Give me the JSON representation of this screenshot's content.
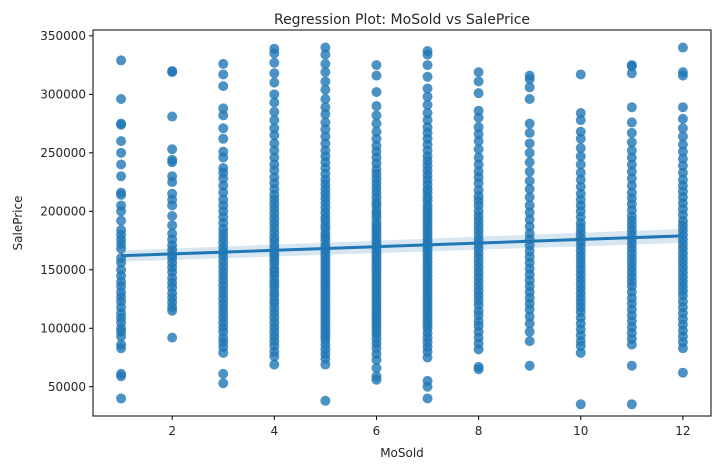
{
  "chart_data": {
    "type": "scatter",
    "title": "Regression Plot: MoSold vs SalePrice",
    "xlabel": "MoSold",
    "ylabel": "SalePrice",
    "xlim": [
      0.45,
      12.55
    ],
    "ylim": [
      25000,
      355000
    ],
    "xticks": [
      2,
      4,
      6,
      8,
      10,
      12
    ],
    "yticks": [
      50000,
      100000,
      150000,
      200000,
      250000,
      300000,
      350000
    ],
    "grid": false,
    "colors": {
      "points": "#1f77b4",
      "line": "#1f77b4",
      "band": "#1f77b4"
    },
    "regression": {
      "x": [
        1,
        12
      ],
      "y": [
        162000,
        179000
      ],
      "ci_lower": [
        157000,
        173000
      ],
      "ci_upper": [
        166500,
        185000
      ]
    },
    "series": [
      {
        "x": 1,
        "values": [
          329000,
          296000,
          275000,
          274000,
          260000,
          250000,
          240000,
          230000,
          216000,
          214000,
          205000,
          200000,
          192000,
          184000,
          180000,
          176000,
          172000,
          168000,
          160000,
          156000,
          150000,
          145000,
          140000,
          136000,
          131000,
          127000,
          123000,
          118000,
          113000,
          109000,
          105000,
          100000,
          97000,
          93000,
          86000,
          83000,
          61000,
          59000,
          40000
        ]
      },
      {
        "x": 2,
        "values": [
          320000,
          319000,
          281000,
          253000,
          244000,
          242000,
          230000,
          225000,
          215000,
          210000,
          205000,
          196000,
          188000,
          181000,
          176000,
          171000,
          167000,
          163000,
          160000,
          156000,
          152000,
          148000,
          143000,
          139000,
          135000,
          130000,
          126000,
          122000,
          118000,
          115000,
          92000
        ]
      },
      {
        "x": 3,
        "values": [
          326000,
          317000,
          307000,
          288000,
          282000,
          271000,
          262000,
          251000,
          246000,
          237000,
          233000,
          228000,
          222000,
          216000,
          210000,
          205000,
          200000,
          195000,
          190000,
          185000,
          181000,
          177000,
          173000,
          169000,
          165000,
          161000,
          157000,
          153000,
          149000,
          145000,
          141000,
          137000,
          133000,
          129000,
          125000,
          121000,
          117000,
          113000,
          109000,
          105000,
          101000,
          97000,
          92000,
          88000,
          84000,
          79000,
          61000,
          53000
        ]
      },
      {
        "x": 4,
        "values": [
          339000,
          335000,
          327000,
          318000,
          310000,
          300000,
          293000,
          285000,
          278000,
          271000,
          265000,
          258000,
          252000,
          246000,
          240000,
          235000,
          229000,
          224000,
          219000,
          214000,
          210000,
          206000,
          202000,
          198000,
          194000,
          190000,
          186000,
          182000,
          178000,
          175000,
          171000,
          168000,
          164000,
          161000,
          158000,
          155000,
          151000,
          148000,
          145000,
          141000,
          138000,
          135000,
          131000,
          128000,
          124000,
          121000,
          117000,
          113000,
          109000,
          105000,
          101000,
          97000,
          93000,
          89000,
          85000,
          80000,
          76000,
          69000
        ]
      },
      {
        "x": 5,
        "values": [
          340000,
          334000,
          326000,
          319000,
          311000,
          304000,
          296000,
          289000,
          283000,
          276000,
          270000,
          264000,
          258000,
          252000,
          247000,
          242000,
          237000,
          232000,
          227000,
          223000,
          219000,
          215000,
          211000,
          207000,
          203000,
          199000,
          195000,
          192000,
          188000,
          185000,
          181000,
          178000,
          175000,
          171000,
          168000,
          165000,
          162000,
          159000,
          156000,
          153000,
          150000,
          147000,
          144000,
          141000,
          138000,
          135000,
          132000,
          129000,
          126000,
          123000,
          120000,
          117000,
          114000,
          111000,
          108000,
          105000,
          102000,
          99000,
          96000,
          93000,
          90000,
          86000,
          82000,
          78000,
          74000,
          69000,
          38000
        ]
      },
      {
        "x": 6,
        "values": [
          325000,
          316000,
          302000,
          290000,
          282000,
          275000,
          268000,
          262000,
          256000,
          251000,
          246000,
          241000,
          236000,
          232000,
          228000,
          224000,
          220000,
          216000,
          212000,
          208000,
          205000,
          201000,
          198000,
          195000,
          191000,
          188000,
          185000,
          182000,
          179000,
          176000,
          173000,
          170000,
          167000,
          164000,
          161000,
          158000,
          155000,
          152000,
          149000,
          146000,
          143000,
          140000,
          137000,
          134000,
          131000,
          128000,
          125000,
          122000,
          119000,
          116000,
          113000,
          110000,
          107000,
          104000,
          101000,
          98000,
          95000,
          91000,
          87000,
          83000,
          78000,
          73000,
          66000,
          59000,
          56000
        ]
      },
      {
        "x": 7,
        "values": [
          337000,
          334000,
          325000,
          315000,
          305000,
          298000,
          291000,
          284000,
          278000,
          272000,
          267000,
          262000,
          257000,
          252000,
          247000,
          243000,
          239000,
          235000,
          231000,
          227000,
          223000,
          219000,
          216000,
          212000,
          209000,
          205000,
          202000,
          199000,
          196000,
          193000,
          190000,
          187000,
          184000,
          181000,
          178000,
          175000,
          172000,
          169000,
          166000,
          163000,
          160000,
          157000,
          154000,
          151000,
          148000,
          145000,
          142000,
          139000,
          136000,
          133000,
          130000,
          127000,
          124000,
          121000,
          118000,
          115000,
          112000,
          109000,
          106000,
          103000,
          100000,
          96000,
          92000,
          88000,
          84000,
          80000,
          75000,
          55000,
          50000,
          40000
        ]
      },
      {
        "x": 8,
        "values": [
          319000,
          311000,
          301000,
          286000,
          280000,
          272000,
          266000,
          260000,
          253000,
          246000,
          240000,
          234000,
          229000,
          224000,
          218000,
          213000,
          209000,
          205000,
          200000,
          196000,
          192000,
          188000,
          184000,
          180000,
          176000,
          172000,
          168000,
          164000,
          160000,
          156000,
          152000,
          148000,
          144000,
          140000,
          136000,
          132000,
          128000,
          124000,
          120000,
          115000,
          111000,
          106000,
          102000,
          97000,
          92000,
          87000,
          82000,
          67000,
          65000
        ]
      },
      {
        "x": 9,
        "values": [
          316000,
          313000,
          306000,
          296000,
          275000,
          267000,
          258000,
          250000,
          242000,
          234000,
          226000,
          219000,
          212000,
          205000,
          199000,
          193000,
          187000,
          181000,
          176000,
          171000,
          166000,
          161000,
          156000,
          151000,
          146000,
          141000,
          136000,
          131000,
          126000,
          121000,
          116000,
          110000,
          104000,
          97000,
          89000,
          68000
        ]
      },
      {
        "x": 10,
        "values": [
          317000,
          284000,
          278000,
          268000,
          262000,
          254000,
          247000,
          240000,
          233000,
          227000,
          221000,
          215000,
          210000,
          205000,
          200000,
          195000,
          190000,
          186000,
          182000,
          178000,
          174000,
          170000,
          166000,
          162000,
          158000,
          154000,
          150000,
          146000,
          142000,
          138000,
          134000,
          130000,
          126000,
          122000,
          118000,
          114000,
          109000,
          104000,
          99000,
          94000,
          89000,
          85000,
          79000,
          35000
        ]
      },
      {
        "x": 11,
        "values": [
          325000,
          324000,
          318000,
          289000,
          276000,
          267000,
          259000,
          252000,
          246000,
          240000,
          234000,
          228000,
          222000,
          216000,
          211000,
          206000,
          201000,
          196000,
          192000,
          188000,
          184000,
          180000,
          176000,
          172000,
          168000,
          164000,
          160000,
          156000,
          152000,
          148000,
          144000,
          140000,
          136000,
          131000,
          126000,
          121000,
          116000,
          111000,
          106000,
          101000,
          96000,
          91000,
          86000,
          68000,
          35000
        ]
      },
      {
        "x": 12,
        "values": [
          340000,
          319000,
          316000,
          289000,
          279000,
          271000,
          264000,
          257000,
          251000,
          245000,
          239000,
          233000,
          227000,
          222000,
          217000,
          212000,
          207000,
          202000,
          197000,
          192000,
          188000,
          184000,
          180000,
          176000,
          172000,
          168000,
          164000,
          160000,
          156000,
          152000,
          148000,
          144000,
          140000,
          136000,
          132000,
          128000,
          123000,
          118000,
          113000,
          108000,
          103000,
          98000,
          93000,
          88000,
          83000,
          62000
        ]
      }
    ]
  }
}
